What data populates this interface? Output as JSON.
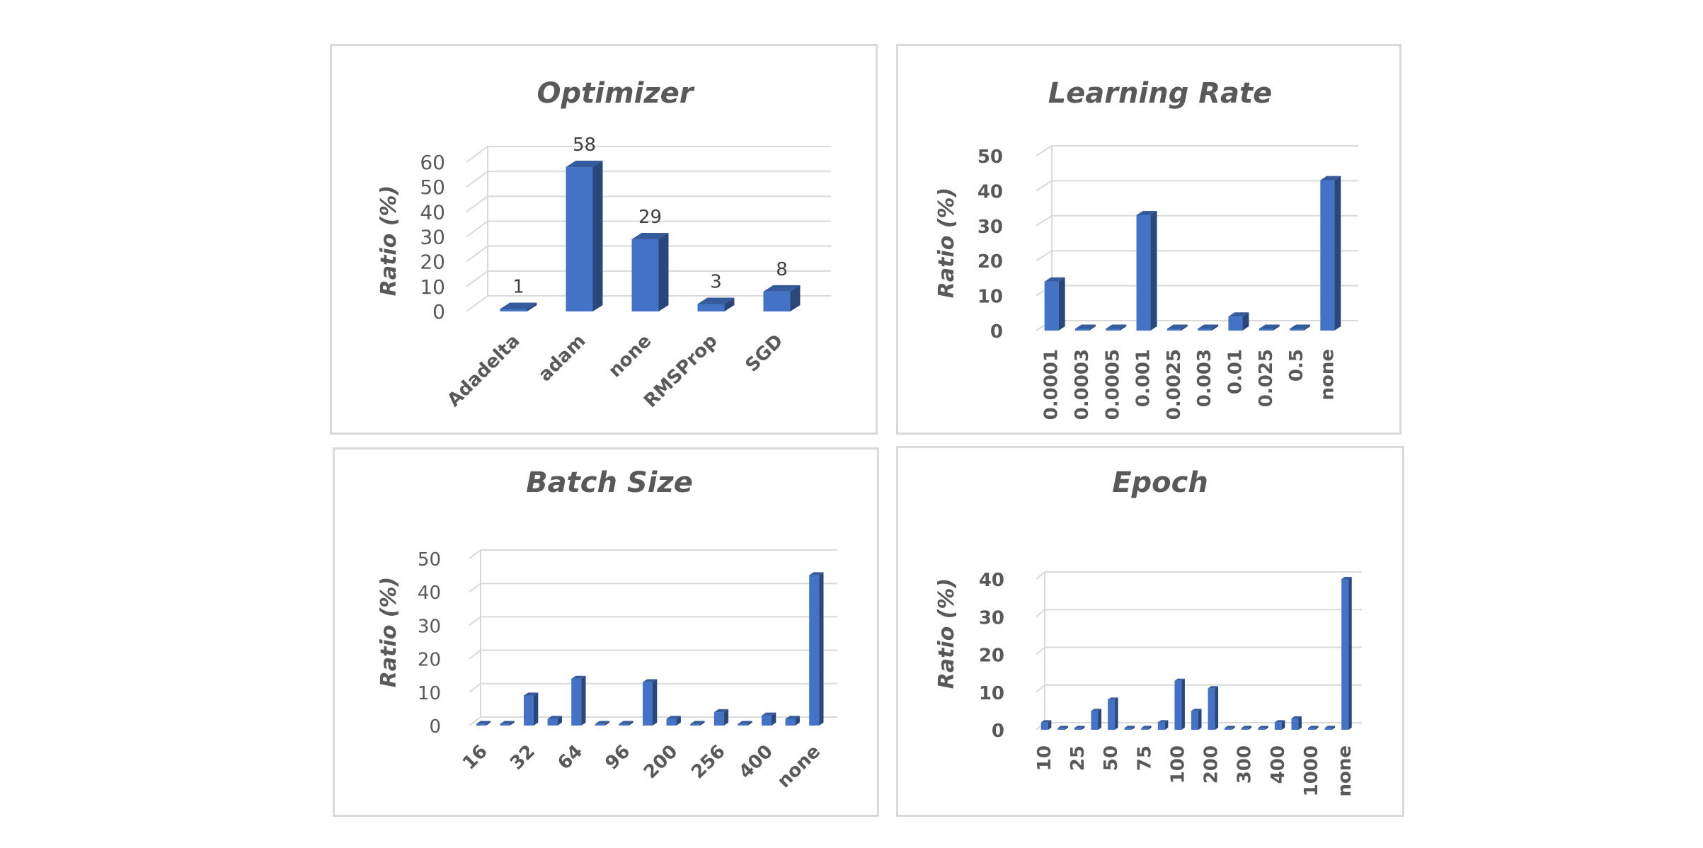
{
  "chart_data": [
    {
      "type": "bar",
      "title": "Optimizer",
      "ylabel": "Ratio (%)",
      "categories": [
        "Adadelta",
        "adam",
        "none",
        "RMSProp",
        "SGD"
      ],
      "values": [
        1,
        58,
        29,
        3,
        8
      ],
      "data_labels": [
        "1",
        "58",
        "29",
        "3",
        "8"
      ],
      "yticks": [
        0,
        10,
        20,
        30,
        40,
        50,
        60
      ],
      "ylim": [
        0,
        60
      ],
      "grid": true,
      "color": "#4472C4"
    },
    {
      "type": "bar",
      "title": "Learning Rate",
      "ylabel": "Ratio (%)",
      "categories": [
        "0.0001",
        "0.0003",
        "0.0005",
        "0.001",
        "0.0025",
        "0.003",
        "0.01",
        "0.025",
        "0.5",
        "none"
      ],
      "values": [
        14,
        0.5,
        0.5,
        33,
        0.5,
        0.5,
        4,
        0.5,
        0.5,
        43
      ],
      "yticks": [
        0,
        10,
        20,
        30,
        40,
        50
      ],
      "ylim": [
        0,
        50
      ],
      "grid": true,
      "color": "#4472C4"
    },
    {
      "type": "bar",
      "title": "Batch Size",
      "ylabel": "Ratio (%)",
      "categories": [
        "16",
        "",
        "32",
        "",
        "64",
        "",
        "96",
        "",
        "200",
        "",
        "256",
        "",
        "400",
        "",
        "none"
      ],
      "values": [
        0.5,
        0.5,
        9,
        2,
        14,
        0.5,
        0.5,
        13,
        2,
        0.5,
        4,
        0.5,
        3,
        2,
        45
      ],
      "yticks": [
        0,
        10,
        20,
        30,
        40,
        50
      ],
      "ylim": [
        0,
        50
      ],
      "grid": true,
      "color": "#4472C4"
    },
    {
      "type": "bar",
      "title": "Epoch",
      "ylabel": "Ratio (%)",
      "categories": [
        "10",
        "",
        "25",
        "",
        "50",
        "",
        "75",
        "",
        "100",
        "",
        "200",
        "",
        "300",
        "",
        "400",
        "",
        "1000",
        "",
        "none"
      ],
      "values": [
        2,
        0.5,
        0.5,
        5,
        8,
        0.5,
        0.5,
        2,
        13,
        5,
        11,
        0.5,
        0.5,
        0.5,
        2,
        3,
        0.5,
        0.5,
        40
      ],
      "yticks": [
        0,
        10,
        20,
        30,
        40
      ],
      "ylim": [
        0,
        40
      ],
      "grid": true,
      "color": "#4472C4"
    }
  ]
}
